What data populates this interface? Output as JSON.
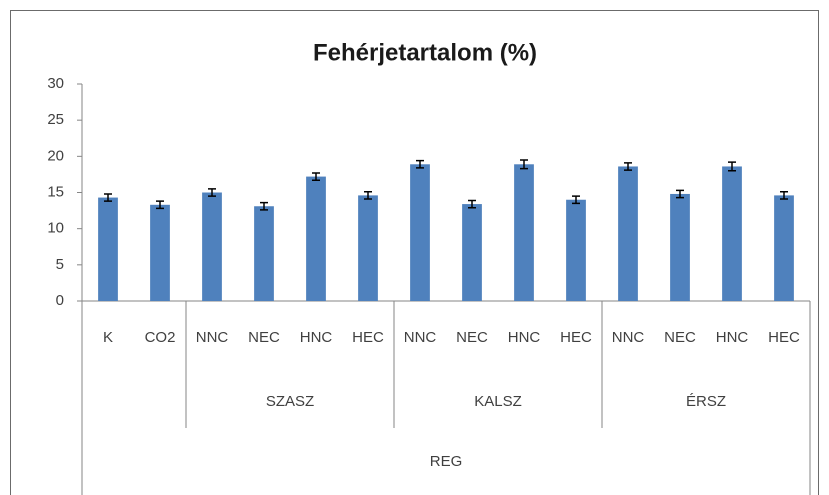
{
  "chart_data": {
    "type": "bar",
    "title": "Fehérjetartalom (%)",
    "categories": [
      "K",
      "CO2",
      "NNC",
      "NEC",
      "HNC",
      "HEC",
      "NNC",
      "NEC",
      "HNC",
      "HEC",
      "NNC",
      "NEC",
      "HNC",
      "HEC"
    ],
    "values": [
      14.3,
      13.3,
      15.0,
      13.1,
      17.2,
      14.6,
      18.9,
      13.4,
      18.9,
      14.0,
      18.6,
      14.8,
      18.6,
      14.6
    ],
    "errors": [
      0.5,
      0.5,
      0.5,
      0.5,
      0.5,
      0.5,
      0.5,
      0.5,
      0.6,
      0.5,
      0.5,
      0.5,
      0.6,
      0.5
    ],
    "groups": [
      {
        "label": "SZASZ",
        "from": 2,
        "to": 5
      },
      {
        "label": "KALSZ",
        "from": 6,
        "to": 9
      },
      {
        "label": "ÉRSZ",
        "from": 10,
        "to": 13
      }
    ],
    "outer_group": "REG",
    "color": "#4f81bd",
    "ylim": [
      0,
      30
    ],
    "yticks": [
      0,
      5,
      10,
      15,
      20,
      25,
      30
    ],
    "grid": false
  }
}
